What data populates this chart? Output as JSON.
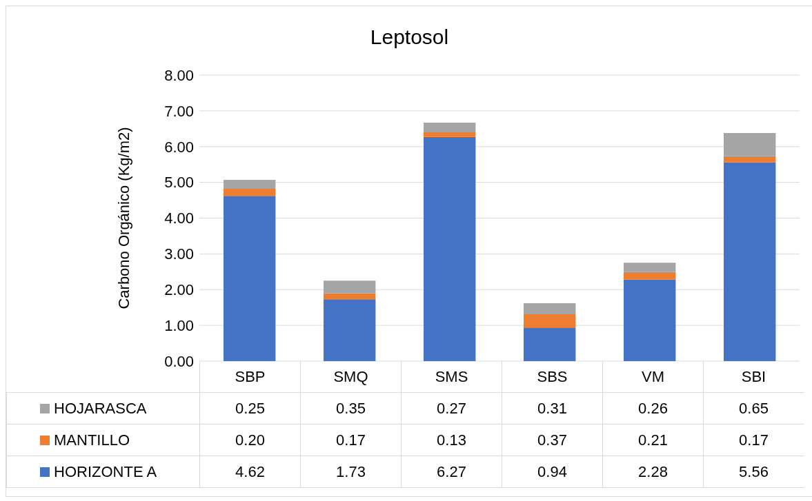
{
  "chart_data": {
    "type": "bar",
    "title": "Leptosol",
    "ylabel": "Carbono Orgánico (Kg/m2)",
    "categories": [
      "SBP",
      "SMQ",
      "SMS",
      "SBS",
      "VM",
      "SBI"
    ],
    "series": [
      {
        "name": "HORIZONTE A",
        "color": "#4472c4",
        "values": [
          4.62,
          1.73,
          6.27,
          0.94,
          2.28,
          5.56
        ],
        "value_labels": [
          "4.62",
          "1.73",
          "6.27",
          "0.94",
          "2.28",
          "5.56"
        ]
      },
      {
        "name": "MANTILLO",
        "color": "#ed7d31",
        "values": [
          0.2,
          0.17,
          0.13,
          0.37,
          0.21,
          0.17
        ],
        "value_labels": [
          "0.20",
          "0.17",
          "0.13",
          "0.37",
          "0.21",
          "0.17"
        ]
      },
      {
        "name": "HOJARASCA",
        "color": "#a5a5a5",
        "values": [
          0.25,
          0.35,
          0.27,
          0.31,
          0.26,
          0.65
        ],
        "value_labels": [
          "0.25",
          "0.35",
          "0.27",
          "0.31",
          "0.26",
          "0.65"
        ]
      }
    ],
    "stacked": true,
    "grid": "y",
    "legend": "bottom",
    "ylim": [
      0,
      8
    ],
    "yticks": [
      {
        "value": 0,
        "label": "0.00"
      },
      {
        "value": 1,
        "label": "1.00"
      },
      {
        "value": 2,
        "label": "2.00"
      },
      {
        "value": 3,
        "label": "3.00"
      },
      {
        "value": 4,
        "label": "4.00"
      },
      {
        "value": 5,
        "label": "5.00"
      },
      {
        "value": 6,
        "label": "6.00"
      },
      {
        "value": 7,
        "label": "7.00"
      },
      {
        "value": 8,
        "label": "8.00"
      }
    ]
  }
}
